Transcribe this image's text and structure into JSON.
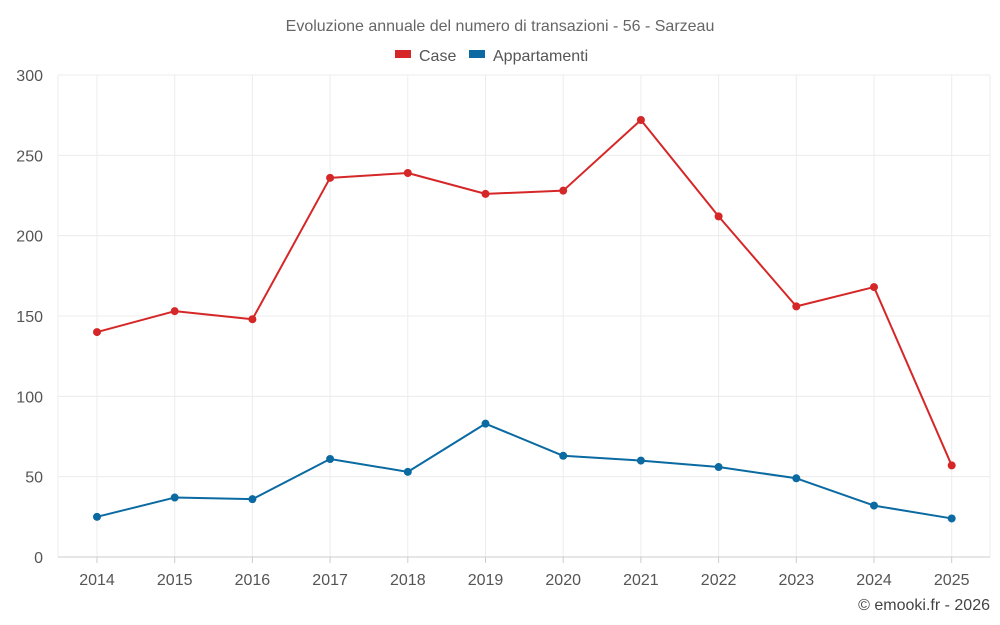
{
  "chart_data": {
    "type": "line",
    "title": "Evoluzione annuale del numero di transazioni - 56 - Sarzeau",
    "categories": [
      "2014",
      "2015",
      "2016",
      "2017",
      "2018",
      "2019",
      "2020",
      "2021",
      "2022",
      "2023",
      "2024",
      "2025"
    ],
    "series": [
      {
        "name": "Case",
        "color": "#d62728",
        "values": [
          140,
          153,
          148,
          236,
          239,
          226,
          228,
          272,
          212,
          156,
          168,
          57
        ]
      },
      {
        "name": "Appartamenti",
        "color": "#0a6aa1",
        "values": [
          25,
          37,
          36,
          61,
          53,
          83,
          63,
          60,
          56,
          49,
          32,
          24
        ]
      }
    ],
    "ylim": [
      0,
      300
    ],
    "yticks": [
      0,
      50,
      100,
      150,
      200,
      250,
      300
    ],
    "xlabel": "",
    "ylabel": "",
    "grid": true,
    "legend_position": "top-center"
  },
  "credit": "© emooki.fr - 2026"
}
